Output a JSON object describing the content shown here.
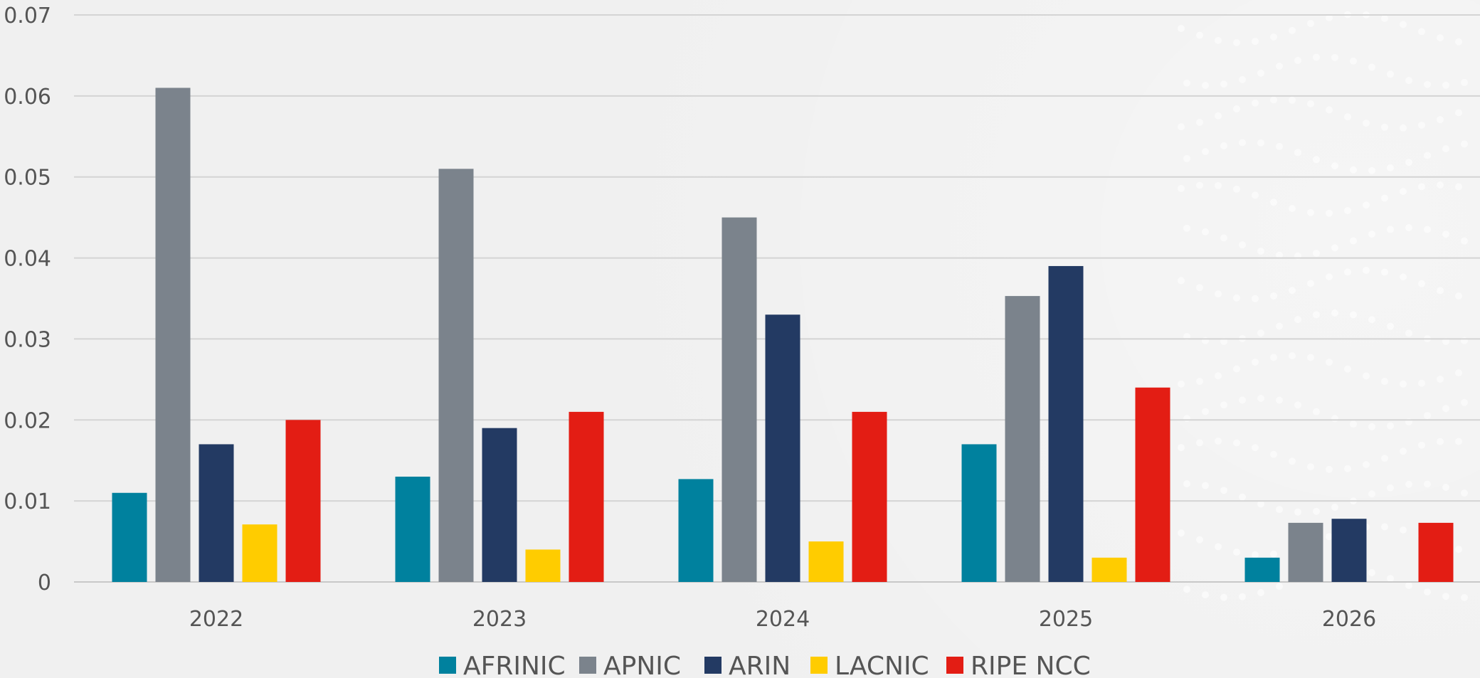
{
  "chart_data": {
    "type": "bar",
    "categories": [
      "2022",
      "2023",
      "2024",
      "2025",
      "2026"
    ],
    "series": [
      {
        "name": "AFRINIC",
        "color": "#00819e",
        "values": [
          0.011,
          0.013,
          0.0127,
          0.017,
          0.003
        ]
      },
      {
        "name": "APNIC",
        "color": "#7b838c",
        "values": [
          0.061,
          0.051,
          0.045,
          0.0353,
          0.0073
        ]
      },
      {
        "name": "ARIN",
        "color": "#233a63",
        "values": [
          0.017,
          0.019,
          0.033,
          0.039,
          0.0078
        ]
      },
      {
        "name": "LACNIC",
        "color": "#ffcc00",
        "values": [
          0.0071,
          0.004,
          0.005,
          0.003,
          0
        ]
      },
      {
        "name": "RIPE NCC",
        "color": "#e31d14",
        "values": [
          0.02,
          0.021,
          0.021,
          0.024,
          0.0073
        ]
      }
    ],
    "yticks": [
      "0",
      "0.01",
      "0.02",
      "0.03",
      "0.04",
      "0.05",
      "0.06",
      "0.07"
    ],
    "ylim": [
      0,
      0.07
    ],
    "grid": true,
    "legend_position": "bottom",
    "title": "",
    "xlabel": "",
    "ylabel": ""
  }
}
